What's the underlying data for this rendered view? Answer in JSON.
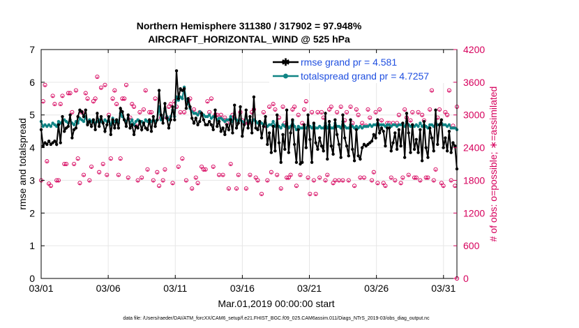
{
  "chart_data": {
    "type": "line",
    "title_line1": "Northern Hemisphere 311380 / 317902 = 97.948%",
    "title_line2": "AIRCRAFT_HORIZONTAL_WIND @ 525 hPa",
    "xlabel": "Mar.01,2019 00:00:00 start",
    "ylabel_left": "rmse and totalspread",
    "ylabel_right": "# of obs: o=possible; ∗=assimilated",
    "xlim": [
      0,
      31
    ],
    "ylim_left": [
      0,
      7
    ],
    "ylim_right": [
      0,
      4200
    ],
    "x_ticks": [
      {
        "x": 0,
        "label": "03/01"
      },
      {
        "x": 5,
        "label": "03/06"
      },
      {
        "x": 10,
        "label": "03/11"
      },
      {
        "x": 15,
        "label": "03/16"
      },
      {
        "x": 20,
        "label": "03/21"
      },
      {
        "x": 25,
        "label": "03/26"
      },
      {
        "x": 30,
        "label": "03/31"
      }
    ],
    "y_ticks_left": [
      "0",
      "1",
      "2",
      "3",
      "4",
      "5",
      "6",
      "7"
    ],
    "y_ticks_right": [
      "0",
      "600",
      "1200",
      "1800",
      "2400",
      "3000",
      "3600",
      "4200"
    ],
    "grid": true,
    "legend_position": "top-right",
    "series": [
      {
        "name": "rmse grand pr = 4.581",
        "color": "#000000",
        "axis": "left",
        "values": [
          4.55,
          4.05,
          4.15,
          4.1,
          4.2,
          4.1,
          4.15,
          4.2,
          4.1,
          4.7,
          4.15,
          4.95,
          4.5,
          4.6,
          4.65,
          5.0,
          4.3,
          4.55,
          4.6,
          4.95,
          5.15,
          5.1,
          4.95,
          5.15,
          4.7,
          4.8,
          4.65,
          4.85,
          4.55,
          5.05,
          4.65,
          4.95,
          4.75,
          4.5,
          4.7,
          4.95,
          4.4,
          4.85,
          4.6,
          4.85,
          4.6,
          5.2,
          5.1,
          4.85,
          4.65,
          5.0,
          4.6,
          4.7,
          4.4,
          4.65,
          4.6,
          4.8,
          4.55,
          4.75,
          4.6,
          4.55,
          4.85,
          4.5,
          4.95,
          4.65,
          4.85,
          5.75,
          5.0,
          4.75,
          5.35,
          4.9,
          4.6,
          4.85,
          5.25,
          4.85,
          6.35,
          5.5,
          5.8,
          5.75,
          5.8,
          5.2,
          5.5,
          5.25,
          4.9,
          4.75,
          4.9,
          4.7,
          4.8,
          5.05,
          4.85,
          4.7,
          4.7,
          4.8,
          4.7,
          4.55,
          5.15,
          4.65,
          4.8,
          4.5,
          4.6,
          4.4,
          4.7,
          4.55,
          4.85,
          4.45,
          5.3,
          4.6,
          4.75,
          5.25,
          4.35,
          4.7,
          5.15,
          4.6,
          4.95,
          4.45,
          5.55,
          4.6,
          4.55,
          4.8,
          4.3,
          4.65,
          4.95,
          4.1,
          4.45,
          3.85,
          4.65,
          3.9,
          5.0,
          4.15,
          3.55,
          4.4,
          3.95,
          5.15,
          3.85,
          4.45,
          4.85,
          4.1,
          3.55,
          4.55,
          3.5,
          3.55,
          4.7,
          4.0,
          5.0,
          4.25,
          3.55,
          4.75,
          4.15,
          3.95,
          4.3,
          4.05,
          3.9,
          5.05,
          3.65,
          4.8,
          4.05,
          3.8,
          4.85,
          4.4,
          4.1,
          3.7,
          5.0,
          4.3,
          4.05,
          3.75,
          4.85,
          3.95,
          3.6,
          4.55,
          3.75,
          3.65,
          4.0,
          4.1,
          4.05,
          4.1,
          4.15,
          4.2,
          4.4,
          4.3,
          4.85,
          4.45,
          4.6,
          4.5,
          4.05,
          4.6,
          4.6,
          3.9,
          4.15,
          4.45,
          3.95,
          4.55,
          4.05,
          4.75,
          3.7,
          5.05,
          4.45,
          3.85,
          4.7,
          3.95,
          4.25,
          3.85,
          4.55,
          3.6,
          4.8,
          4.0,
          3.7,
          4.6,
          4.3,
          3.9,
          5.15,
          4.1,
          4.7,
          4.85,
          4.0,
          4.3,
          3.9,
          4.5,
          3.85,
          4.15,
          4.05,
          3.35
        ]
      },
      {
        "name": "totalspread grand pr = 4.7257",
        "color": "#0f8484",
        "axis": "left",
        "values": [
          4.8,
          4.65,
          4.7,
          4.65,
          4.7,
          4.65,
          4.75,
          4.7,
          4.65,
          4.8,
          4.75,
          4.8,
          4.85,
          4.8,
          4.75,
          4.85,
          4.75,
          4.7,
          4.8,
          4.75,
          4.9,
          4.85,
          4.8,
          4.95,
          4.75,
          4.85,
          4.8,
          4.85,
          4.75,
          4.8,
          4.85,
          4.8,
          4.75,
          4.85,
          4.8,
          4.8,
          4.7,
          4.9,
          4.8,
          4.85,
          4.75,
          5.05,
          4.95,
          4.85,
          4.8,
          4.9,
          4.75,
          4.85,
          4.7,
          4.8,
          4.85,
          4.75,
          4.8,
          4.7,
          4.85,
          4.8,
          4.75,
          4.8,
          4.85,
          4.8,
          4.85,
          5.25,
          4.85,
          4.9,
          5.2,
          4.95,
          4.85,
          4.95,
          5.15,
          4.95,
          5.55,
          5.45,
          5.55,
          5.5,
          5.85,
          5.45,
          5.35,
          5.2,
          5.1,
          5.05,
          5.05,
          5.0,
          5.1,
          5.0,
          5.0,
          4.95,
          4.95,
          5.0,
          4.9,
          4.95,
          4.95,
          4.85,
          4.9,
          4.9,
          4.85,
          4.8,
          4.85,
          4.85,
          4.95,
          4.8,
          4.9,
          4.85,
          4.8,
          4.85,
          4.8,
          4.75,
          4.95,
          4.8,
          4.85,
          4.75,
          4.85,
          4.8,
          4.75,
          4.8,
          4.75,
          4.7,
          4.75,
          4.65,
          4.7,
          4.7,
          4.8,
          4.65,
          4.75,
          4.65,
          4.6,
          4.7,
          4.65,
          4.75,
          4.6,
          4.65,
          4.8,
          4.65,
          4.55,
          4.65,
          4.6,
          4.6,
          4.65,
          4.6,
          4.7,
          4.65,
          4.6,
          4.7,
          4.6,
          4.6,
          4.65,
          4.6,
          4.6,
          4.75,
          4.6,
          4.7,
          4.6,
          4.6,
          4.75,
          4.65,
          4.65,
          4.6,
          4.8,
          4.65,
          4.6,
          4.6,
          4.7,
          4.65,
          4.6,
          4.65,
          4.6,
          4.65,
          4.6,
          4.65,
          4.65,
          4.65,
          4.7,
          4.65,
          4.7,
          4.7,
          4.75,
          4.7,
          4.7,
          4.7,
          4.65,
          4.7,
          4.7,
          4.65,
          4.7,
          4.7,
          4.65,
          4.7,
          4.7,
          4.7,
          4.65,
          4.8,
          4.7,
          4.65,
          4.7,
          4.65,
          4.7,
          4.65,
          4.75,
          4.65,
          4.7,
          4.65,
          4.6,
          4.7,
          4.7,
          4.65,
          4.75,
          4.7,
          4.7,
          4.75,
          4.7,
          4.7,
          4.65,
          4.7,
          4.6,
          4.6,
          4.6,
          4.55
        ]
      },
      {
        "name": "obs possible",
        "color": "#d6005c",
        "axis": "right",
        "marker": "o",
        "values": [
          1800,
          3250,
          3550,
          2150,
          1740,
          1700,
          3350,
          3200,
          1800,
          1800,
          3200,
          3350,
          2100,
          2100,
          3400,
          3400,
          3050,
          2100,
          3450,
          2200,
          1750,
          3050,
          1900,
          3400,
          3300,
          1800,
          2050,
          3250,
          3300,
          3700,
          1950,
          3500,
          2100,
          3550,
          1900,
          3000,
          2200,
          3300,
          3450,
          3200,
          1900,
          2200,
          3300,
          3300,
          3550,
          1850,
          2950,
          3200,
          3150,
          2800,
          1800,
          3050,
          1850,
          3100,
          3450,
          2000,
          3050,
          3050,
          1800,
          3300,
          1950,
          1700,
          2950,
          1800,
          2000,
          2950,
          3150,
          3200,
          1750,
          3250,
          3150,
          2050,
          3050,
          2200,
          3050,
          1800,
          3250,
          3300,
          1650,
          3100,
          1850,
          1750,
          3050,
          2050,
          2000,
          2000,
          3250,
          3050,
          3300,
          2050,
          3000,
          3000,
          1900,
          3000,
          1900,
          2950,
          2850,
          1650,
          2100,
          3000,
          2950,
          1650,
          1900,
          3050,
          2900,
          2850,
          1650,
          2850,
          1900,
          3050,
          3100,
          1850,
          1800,
          2850,
          1550,
          3050,
          2800,
          1800,
          3150,
          1950,
          3200,
          3100,
          1900,
          2950,
          1650,
          3150,
          2850,
          1850,
          1850,
          1900,
          3100,
          3150,
          1700,
          3000,
          1900,
          2850,
          3100,
          3250,
          1850,
          1550,
          3050,
          1800,
          1550,
          3050,
          1850,
          3050,
          2950,
          1800,
          1900,
          3100,
          3150,
          1750,
          1800,
          3050,
          1800,
          3150,
          1800,
          2900,
          3050,
          1800,
          3150,
          2850,
          1700,
          3100,
          3000,
          1850,
          2850,
          1850,
          2800,
          3100,
          2950,
          1800,
          1950,
          3050,
          1750,
          3100,
          2900,
          1750,
          1700,
          2850,
          2850,
          1850,
          2850,
          1800,
          2850,
          3000,
          1750,
          1850,
          3100,
          2950,
          1900,
          2900,
          3050,
          1850,
          1850,
          3050,
          1800,
          3000,
          2900,
          1850,
          1850,
          3100,
          3450,
          1800,
          2000,
          2950,
          3100,
          1750,
          1700,
          3050,
          3000,
          3450,
          1800,
          2800,
          1700,
          3150
        ]
      },
      {
        "name": "obs assimilated",
        "color": "#d6005c",
        "axis": "right",
        "marker": "*",
        "values": [
          1780,
          3230,
          3530,
          2130,
          1720,
          1680,
          3330,
          3180,
          1780,
          1780,
          3180,
          3330,
          2080,
          2080,
          3380,
          3380,
          3030,
          2080,
          3430,
          2180,
          1730,
          3030,
          1880,
          3380,
          3280,
          1780,
          2030,
          3230,
          3280,
          3680,
          1930,
          3480,
          2080,
          3530,
          1880,
          2980,
          2180,
          3280,
          3430,
          3180,
          1880,
          2180,
          3280,
          3280,
          3530,
          1830,
          2930,
          3180,
          3130,
          2780,
          1780,
          3030,
          1830,
          3080,
          3430,
          1980,
          3030,
          3030,
          1780,
          3280,
          1930,
          1680,
          2930,
          1780,
          1980,
          2930,
          3130,
          3180,
          1730,
          3230,
          3130,
          2030,
          3030,
          2180,
          3030,
          1780,
          3230,
          3280,
          1630,
          3080,
          1830,
          1730,
          3030,
          2030,
          1980,
          1980,
          3230,
          3030,
          3280,
          2030,
          2980,
          2980,
          1880,
          2980,
          1880,
          2930,
          2830,
          1630,
          2080,
          2980,
          2930,
          1630,
          1880,
          3030,
          2880,
          2830,
          1630,
          2830,
          1880,
          3030,
          3080,
          1830,
          1780,
          2830,
          1530,
          3030,
          2780,
          1780,
          3130,
          1930,
          3180,
          3080,
          1880,
          2930,
          1630,
          3130,
          2830,
          1830,
          1830,
          1880,
          3080,
          3130,
          1680,
          2980,
          1880,
          2830,
          3080,
          3230,
          1830,
          1530,
          3030,
          1780,
          1530,
          3030,
          1830,
          3030,
          2930,
          1780,
          1880,
          3080,
          3130,
          1730,
          1780,
          3030,
          1780,
          3130,
          1780,
          2880,
          3030,
          1780,
          3130,
          2830,
          1680,
          3080,
          2980,
          1830,
          2830,
          1830,
          2780,
          3080,
          2930,
          1780,
          1930,
          3030,
          1730,
          3080,
          2880,
          1730,
          1680,
          2830,
          2830,
          1830,
          2830,
          1780,
          2830,
          2980,
          1730,
          1830,
          3080,
          2930,
          1880,
          2880,
          3030,
          1830,
          1830,
          3030,
          1780,
          2980,
          2880,
          1830,
          1830,
          3080,
          3430,
          1780,
          1980,
          2930,
          3080,
          1730,
          1680,
          3030,
          2980,
          3430,
          1780,
          2780,
          1680,
          3130
        ]
      }
    ],
    "footnote": "data file: /Users/raeder/DAI/ATM_forcXX/CAM6_setup/f.e21.FHIST_BGC.f09_025.CAM6assim.011/Diags_NTrS_2019-03/obs_diag_output.nc"
  }
}
